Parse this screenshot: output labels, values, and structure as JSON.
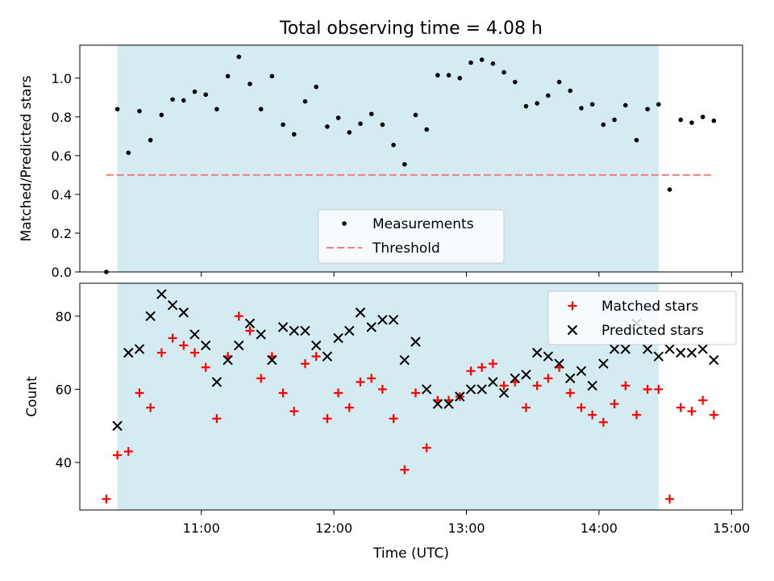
{
  "chart_data": [
    {
      "type": "scatter",
      "title": "Total observing time = 4.08 h",
      "xlabel": "",
      "ylabel": "Matched/Predicted stars",
      "xlim": [
        "10:05",
        "15:05"
      ],
      "ylim": [
        0,
        1.17
      ],
      "yticks": [
        "0.0",
        "0.2",
        "0.4",
        "0.6",
        "0.8",
        "1.0"
      ],
      "shaded_interval": [
        "10:22",
        "14:27"
      ],
      "legend_position": "lower center",
      "legend": [
        "Measurements",
        "Threshold"
      ],
      "threshold": {
        "name": "Threshold",
        "y": 0.5,
        "x_range": [
          "10:17",
          "14:52"
        ],
        "color": "#f08080"
      },
      "series": [
        {
          "name": "Measurements",
          "color": "#000000",
          "points": [
            [
              "10:17",
              0.0
            ],
            [
              "10:22",
              0.84
            ],
            [
              "10:27",
              0.615
            ],
            [
              "10:32",
              0.83
            ],
            [
              "10:37",
              0.68
            ],
            [
              "10:42",
              0.81
            ],
            [
              "10:47",
              0.89
            ],
            [
              "10:52",
              0.885
            ],
            [
              "10:57",
              0.93
            ],
            [
              "11:02",
              0.915
            ],
            [
              "11:07",
              0.84
            ],
            [
              "11:12",
              1.01
            ],
            [
              "11:17",
              1.11
            ],
            [
              "11:22",
              0.97
            ],
            [
              "11:27",
              0.84
            ],
            [
              "11:32",
              1.01
            ],
            [
              "11:37",
              0.76
            ],
            [
              "11:42",
              0.71
            ],
            [
              "11:47",
              0.88
            ],
            [
              "11:52",
              0.955
            ],
            [
              "11:57",
              0.75
            ],
            [
              "12:02",
              0.795
            ],
            [
              "12:07",
              0.72
            ],
            [
              "12:12",
              0.765
            ],
            [
              "12:17",
              0.815
            ],
            [
              "12:22",
              0.76
            ],
            [
              "12:27",
              0.655
            ],
            [
              "12:32",
              0.555
            ],
            [
              "12:37",
              0.81
            ],
            [
              "12:42",
              0.735
            ],
            [
              "12:47",
              1.015
            ],
            [
              "12:52",
              1.015
            ],
            [
              "12:57",
              1.0
            ],
            [
              "13:02",
              1.08
            ],
            [
              "13:07",
              1.095
            ],
            [
              "13:12",
              1.075
            ],
            [
              "13:17",
              1.03
            ],
            [
              "13:22",
              0.98
            ],
            [
              "13:27",
              0.855
            ],
            [
              "13:32",
              0.87
            ],
            [
              "13:37",
              0.91
            ],
            [
              "13:42",
              0.98
            ],
            [
              "13:47",
              0.935
            ],
            [
              "13:52",
              0.845
            ],
            [
              "13:57",
              0.865
            ],
            [
              "14:02",
              0.76
            ],
            [
              "14:07",
              0.785
            ],
            [
              "14:12",
              0.86
            ],
            [
              "14:17",
              0.68
            ],
            [
              "14:22",
              0.84
            ],
            [
              "14:27",
              0.865
            ],
            [
              "14:32",
              0.425
            ],
            [
              "14:37",
              0.785
            ],
            [
              "14:42",
              0.77
            ],
            [
              "14:47",
              0.8
            ],
            [
              "14:52",
              0.78
            ]
          ]
        }
      ]
    },
    {
      "type": "scatter",
      "title": "",
      "xlabel": "Time (UTC)",
      "ylabel": "Count",
      "xlim": [
        "10:05",
        "15:05"
      ],
      "ylim": [
        27,
        89
      ],
      "yticks": [
        "40",
        "60",
        "80"
      ],
      "xticks": [
        "11:00",
        "12:00",
        "13:00",
        "14:00",
        "15:00"
      ],
      "shaded_interval": [
        "10:22",
        "14:27"
      ],
      "legend_position": "upper right",
      "legend": [
        "Matched stars",
        "Predicted stars"
      ],
      "series": [
        {
          "name": "Matched stars",
          "color": "#ff0000",
          "marker": "+",
          "points": [
            [
              "10:17",
              30
            ],
            [
              "10:22",
              42
            ],
            [
              "10:27",
              43
            ],
            [
              "10:32",
              59
            ],
            [
              "10:37",
              55
            ],
            [
              "10:42",
              70
            ],
            [
              "10:47",
              74
            ],
            [
              "10:52",
              72
            ],
            [
              "10:57",
              70
            ],
            [
              "11:02",
              66
            ],
            [
              "11:07",
              52
            ],
            [
              "11:12",
              69
            ],
            [
              "11:17",
              80
            ],
            [
              "11:22",
              76
            ],
            [
              "11:27",
              63
            ],
            [
              "11:32",
              69
            ],
            [
              "11:37",
              59
            ],
            [
              "11:42",
              54
            ],
            [
              "11:47",
              67
            ],
            [
              "11:52",
              69
            ],
            [
              "11:57",
              52
            ],
            [
              "12:02",
              59
            ],
            [
              "12:07",
              55
            ],
            [
              "12:12",
              62
            ],
            [
              "12:17",
              63
            ],
            [
              "12:22",
              60
            ],
            [
              "12:27",
              52
            ],
            [
              "12:32",
              38
            ],
            [
              "12:37",
              59
            ],
            [
              "12:42",
              44
            ],
            [
              "12:47",
              57
            ],
            [
              "12:52",
              57
            ],
            [
              "12:57",
              58
            ],
            [
              "13:02",
              65
            ],
            [
              "13:07",
              66
            ],
            [
              "13:12",
              67
            ],
            [
              "13:17",
              61
            ],
            [
              "13:22",
              62
            ],
            [
              "13:27",
              55
            ],
            [
              "13:32",
              61
            ],
            [
              "13:37",
              63
            ],
            [
              "13:42",
              66
            ],
            [
              "13:47",
              59
            ],
            [
              "13:52",
              55
            ],
            [
              "13:57",
              53
            ],
            [
              "14:02",
              51
            ],
            [
              "14:07",
              56
            ],
            [
              "14:12",
              61
            ],
            [
              "14:17",
              53
            ],
            [
              "14:22",
              60
            ],
            [
              "14:27",
              60
            ],
            [
              "14:32",
              30
            ],
            [
              "14:37",
              55
            ],
            [
              "14:42",
              54
            ],
            [
              "14:47",
              57
            ],
            [
              "14:52",
              53
            ]
          ]
        },
        {
          "name": "Predicted stars",
          "color": "#000000",
          "marker": "x",
          "points": [
            [
              "10:22",
              50
            ],
            [
              "10:27",
              70
            ],
            [
              "10:32",
              71
            ],
            [
              "10:37",
              80
            ],
            [
              "10:42",
              86
            ],
            [
              "10:47",
              83
            ],
            [
              "10:52",
              81
            ],
            [
              "10:57",
              75
            ],
            [
              "11:02",
              72
            ],
            [
              "11:07",
              62
            ],
            [
              "11:12",
              68
            ],
            [
              "11:17",
              72
            ],
            [
              "11:22",
              78
            ],
            [
              "11:27",
              75
            ],
            [
              "11:32",
              68
            ],
            [
              "11:37",
              77
            ],
            [
              "11:42",
              76
            ],
            [
              "11:47",
              76
            ],
            [
              "11:52",
              72
            ],
            [
              "11:57",
              69
            ],
            [
              "12:02",
              74
            ],
            [
              "12:07",
              76
            ],
            [
              "12:12",
              81
            ],
            [
              "12:17",
              77
            ],
            [
              "12:22",
              79
            ],
            [
              "12:27",
              79
            ],
            [
              "12:32",
              68
            ],
            [
              "12:37",
              73
            ],
            [
              "12:42",
              60
            ],
            [
              "12:47",
              56
            ],
            [
              "12:52",
              56
            ],
            [
              "12:57",
              58
            ],
            [
              "13:02",
              60
            ],
            [
              "13:07",
              60
            ],
            [
              "13:12",
              62
            ],
            [
              "13:17",
              59
            ],
            [
              "13:22",
              63
            ],
            [
              "13:27",
              64
            ],
            [
              "13:32",
              70
            ],
            [
              "13:37",
              69
            ],
            [
              "13:42",
              67
            ],
            [
              "13:47",
              63
            ],
            [
              "13:52",
              65
            ],
            [
              "13:57",
              61
            ],
            [
              "14:02",
              67
            ],
            [
              "14:07",
              71
            ],
            [
              "14:12",
              71
            ],
            [
              "14:17",
              78
            ],
            [
              "14:22",
              71
            ],
            [
              "14:27",
              69
            ],
            [
              "14:32",
              71
            ],
            [
              "14:37",
              70
            ],
            [
              "14:42",
              70
            ],
            [
              "14:47",
              71
            ],
            [
              "14:52",
              68
            ]
          ]
        }
      ]
    }
  ]
}
